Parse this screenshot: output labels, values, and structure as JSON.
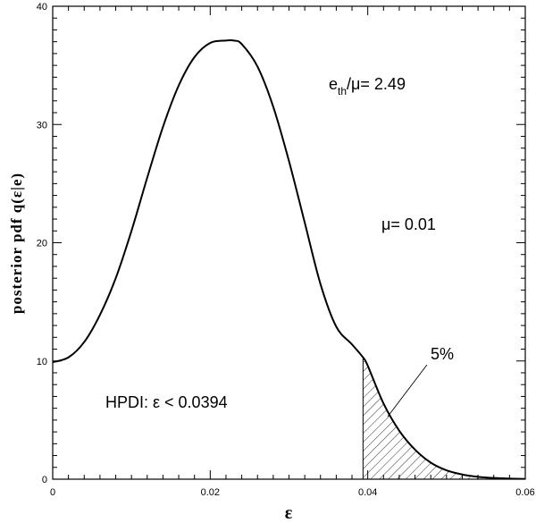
{
  "chart_data": {
    "type": "line",
    "title": "",
    "xlabel": "ε",
    "ylabel": "posterior pdf q(ε|e)",
    "xlim": [
      0,
      0.06
    ],
    "ylim": [
      0,
      40
    ],
    "x_ticks": [
      0,
      0.02,
      0.04,
      0.06
    ],
    "x_tick_labels": [
      "0",
      "0.02",
      "0.04",
      "0.06"
    ],
    "y_ticks": [
      0,
      10,
      20,
      30,
      40
    ],
    "y_tick_labels": [
      "0",
      "10",
      "20",
      "30",
      "40"
    ],
    "grid": false,
    "series": [
      {
        "x": [
          0,
          0.002,
          0.004,
          0.006,
          0.008,
          0.01,
          0.012,
          0.014,
          0.016,
          0.018,
          0.02,
          0.022,
          0.023,
          0.024,
          0.026,
          0.028,
          0.03,
          0.032,
          0.034,
          0.036,
          0.038,
          0.0394,
          0.04,
          0.042,
          0.044,
          0.046,
          0.048,
          0.05,
          0.052,
          0.054,
          0.056,
          0.058,
          0.06
        ],
        "y": [
          9.9,
          10.3,
          11.6,
          13.9,
          17.0,
          21.0,
          25.5,
          29.8,
          33.3,
          35.7,
          36.9,
          37.1,
          37.1,
          36.8,
          34.9,
          31.5,
          26.9,
          21.7,
          16.5,
          12.9,
          11.4,
          10.3,
          9.6,
          6.4,
          4.1,
          2.5,
          1.4,
          0.75,
          0.4,
          0.2,
          0.1,
          0.05,
          0.02
        ]
      }
    ],
    "shaded_region": {
      "x_start": 0.0394,
      "x_end": 0.06,
      "pattern": "hatched",
      "label": "5%"
    },
    "annotations": {
      "eth_ratio": {
        "sub_base": "e",
        "sub": "th",
        "rest": "/μ=  2.49"
      },
      "mu": "μ=  0.01",
      "hpdi": "HPDI:   ε  <  0.0394",
      "pct": "5%"
    }
  }
}
